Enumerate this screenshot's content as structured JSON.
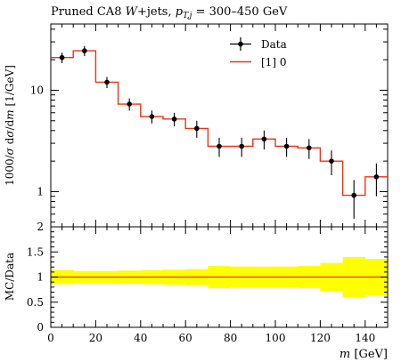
{
  "chart_data": {
    "title": "Pruned CA8 W+jets, p_T,j = 300–450 GeV",
    "title_parts": {
      "prefix": "Pruned CA8 ",
      "w": "W",
      "jets": "+jets, ",
      "p": "p",
      "tj": "T,j",
      "range": " = 300–450 GeV"
    },
    "legend": {
      "position": "top-right",
      "data_label": "Data",
      "mc_label": "[1] 0"
    },
    "main": {
      "type": "line",
      "yscale": "log",
      "ylabel": "1000/σ dσ/dm [1/GeV]",
      "ylabel_parts": {
        "prefix": "1000/",
        "sigma": "σ",
        "d1": " d",
        "sigma2": "σ",
        "d2": "/d",
        "m": "m",
        "unit": " [1/GeV]"
      },
      "ylim": [
        0.45,
        45
      ],
      "yticks": [
        {
          "value": 1,
          "label": "1"
        },
        {
          "value": 10,
          "label": "10"
        }
      ],
      "data": {
        "name": "Data",
        "x": [
          5,
          15,
          25,
          35,
          45,
          55,
          65,
          75,
          85,
          95,
          105,
          115,
          125,
          135,
          145
        ],
        "y": [
          21.0,
          24.5,
          12.0,
          7.3,
          5.5,
          5.2,
          4.2,
          2.8,
          2.8,
          3.3,
          2.8,
          2.7,
          2.0,
          0.92,
          1.4
        ],
        "err": [
          2.5,
          2.8,
          1.5,
          1.0,
          0.8,
          0.8,
          0.8,
          0.6,
          0.6,
          0.7,
          0.6,
          0.6,
          0.55,
          0.38,
          0.5
        ]
      },
      "mc": {
        "name": "[1] 0",
        "bin_edges": [
          0,
          10,
          20,
          30,
          40,
          50,
          60,
          70,
          80,
          90,
          100,
          110,
          120,
          130,
          140,
          150
        ],
        "values": [
          21.0,
          24.5,
          12.0,
          7.3,
          5.5,
          5.2,
          4.2,
          2.8,
          2.8,
          3.3,
          2.8,
          2.7,
          2.0,
          0.92,
          1.4
        ]
      }
    },
    "ratio": {
      "type": "area",
      "ylabel": "MC/Data",
      "ylim": [
        0,
        2
      ],
      "yticks": [
        {
          "value": 0,
          "label": "0"
        },
        {
          "value": 0.5,
          "label": "0.5"
        },
        {
          "value": 1,
          "label": "1"
        },
        {
          "value": 1.5,
          "label": "1.5"
        },
        {
          "value": 2,
          "label": "2"
        }
      ],
      "band_lo": [
        0.86,
        0.88,
        0.88,
        0.87,
        0.86,
        0.85,
        0.84,
        0.78,
        0.79,
        0.79,
        0.79,
        0.78,
        0.72,
        0.6,
        0.64
      ],
      "band_hi": [
        1.14,
        1.12,
        1.12,
        1.13,
        1.14,
        1.15,
        1.16,
        1.22,
        1.21,
        1.21,
        1.21,
        1.22,
        1.28,
        1.4,
        1.36
      ],
      "line_value": 1.0
    },
    "xaxis": {
      "xlim": [
        0,
        150
      ],
      "xlabel": "m [GeV]",
      "xlabel_parts": {
        "var": "m",
        "unit": " [GeV]"
      },
      "xticks": [
        0,
        20,
        40,
        60,
        80,
        100,
        120,
        140
      ]
    },
    "colors": {
      "data": "#000000",
      "mc": "#ee3311",
      "band": "#ffff00",
      "frame": "#000000"
    }
  }
}
